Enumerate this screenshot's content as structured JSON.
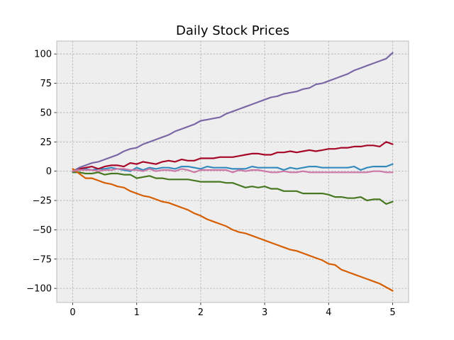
{
  "chart_data": {
    "type": "line",
    "title": "Daily Stock Prices",
    "xlabel": "",
    "ylabel": "",
    "xlim": [
      -0.25,
      5.25
    ],
    "ylim": [
      -112,
      111
    ],
    "xticks": [
      0,
      1,
      2,
      3,
      4,
      5
    ],
    "yticks": [
      -100,
      -75,
      -50,
      -25,
      0,
      25,
      50,
      75,
      100
    ],
    "x_tick_labels": [
      "0",
      "1",
      "2",
      "3",
      "4",
      "5"
    ],
    "y_tick_labels": [
      "−100",
      "−75",
      "−50",
      "−25",
      "0",
      "25",
      "50",
      "75",
      "100"
    ],
    "grid": true,
    "legend": "none",
    "colors": {
      "plot_background": "#eeeeee",
      "grid": "#b0b0b0",
      "axes_edge": "#bcbcbc"
    },
    "x": [
      0,
      0.1,
      0.2,
      0.3,
      0.4,
      0.5,
      0.6,
      0.7,
      0.8,
      0.9,
      1.0,
      1.1,
      1.2,
      1.3,
      1.4,
      1.5,
      1.6,
      1.7,
      1.8,
      1.9,
      2.0,
      2.1,
      2.2,
      2.3,
      2.4,
      2.5,
      2.6,
      2.7,
      2.8,
      2.9,
      3.0,
      3.1,
      3.2,
      3.3,
      3.4,
      3.5,
      3.6,
      3.7,
      3.8,
      3.9,
      4.0,
      4.1,
      4.2,
      4.3,
      4.4,
      4.5,
      4.6,
      4.7,
      4.8,
      4.9,
      5.0
    ],
    "series": [
      {
        "color": "#348abd",
        "values": [
          -1,
          1,
          2,
          1,
          2,
          2,
          3,
          2,
          1,
          0,
          3,
          1,
          3,
          2,
          3,
          3,
          2,
          4,
          4,
          3,
          2,
          4,
          3,
          3,
          3,
          2,
          2,
          2,
          4,
          3,
          3,
          3,
          3,
          1,
          3,
          2,
          3,
          4,
          4,
          3,
          3,
          3,
          3,
          3,
          4,
          1,
          3,
          4,
          4,
          4,
          6
        ]
      },
      {
        "color": "#a60628",
        "values": [
          0,
          2,
          3,
          4,
          2,
          4,
          5,
          5,
          4,
          7,
          6,
          8,
          7,
          6,
          8,
          9,
          8,
          10,
          9,
          9,
          11,
          11,
          11,
          12,
          12,
          12,
          13,
          14,
          15,
          15,
          14,
          14,
          16,
          16,
          17,
          16,
          17,
          18,
          17,
          18,
          19,
          19,
          20,
          20,
          21,
          21,
          22,
          22,
          21,
          25,
          23
        ]
      },
      {
        "color": "#7a68a6",
        "values": [
          0,
          3,
          5,
          7,
          8,
          10,
          12,
          14,
          17,
          19,
          20,
          23,
          25,
          27,
          29,
          31,
          34,
          36,
          38,
          40,
          43,
          44,
          45,
          46,
          49,
          51,
          53,
          55,
          57,
          59,
          61,
          63,
          64,
          66,
          67,
          68,
          70,
          71,
          74,
          75,
          77,
          79,
          81,
          83,
          86,
          88,
          90,
          92,
          94,
          96,
          101
        ]
      },
      {
        "color": "#467821",
        "values": [
          -1,
          -1,
          -2,
          -2,
          -1,
          -3,
          -2,
          -2,
          -3,
          -3,
          -6,
          -5,
          -4,
          -6,
          -6,
          -7,
          -7,
          -7,
          -7,
          -8,
          -9,
          -9,
          -9,
          -9,
          -10,
          -10,
          -12,
          -14,
          -13,
          -14,
          -13,
          -15,
          -15,
          -17,
          -17,
          -17,
          -19,
          -19,
          -19,
          -19,
          -20,
          -22,
          -22,
          -23,
          -23,
          -22,
          -25,
          -24,
          -24,
          -28,
          -26
        ]
      },
      {
        "color": "#d55e00",
        "values": [
          2,
          -2,
          -6,
          -6,
          -8,
          -10,
          -11,
          -13,
          -14,
          -17,
          -19,
          -21,
          -22,
          -24,
          -26,
          -27,
          -29,
          -31,
          -33,
          -36,
          -38,
          -41,
          -43,
          -45,
          -47,
          -50,
          -52,
          -53,
          -55,
          -57,
          -59,
          -61,
          -63,
          -65,
          -67,
          -68,
          -70,
          -72,
          -74,
          -76,
          -79,
          -80,
          -84,
          -86,
          -88,
          -90,
          -92,
          -94,
          -96,
          -99,
          -102
        ]
      },
      {
        "color": "#cc79a7",
        "values": [
          0,
          1,
          1,
          1,
          0,
          1,
          1,
          2,
          2,
          1,
          1,
          0,
          2,
          0,
          1,
          1,
          0,
          2,
          1,
          -1,
          1,
          1,
          1,
          1,
          1,
          -1,
          1,
          0,
          1,
          1,
          0,
          -1,
          -1,
          0,
          -1,
          -1,
          0,
          -1,
          -1,
          -1,
          -1,
          -1,
          -1,
          -1,
          -1,
          -1,
          -1,
          0,
          0,
          -1,
          -1
        ]
      }
    ]
  }
}
